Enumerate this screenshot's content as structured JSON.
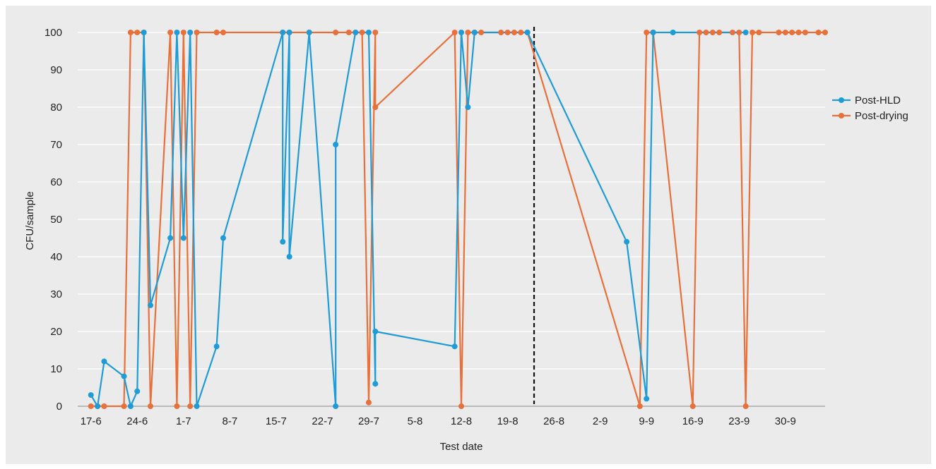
{
  "chart_data": {
    "type": "line",
    "title": "",
    "xlabel": "Test date",
    "ylabel": "CFU/sample",
    "ylim": [
      0,
      100
    ],
    "yticks": [
      0,
      10,
      20,
      30,
      40,
      50,
      60,
      70,
      80,
      90,
      100
    ],
    "xlim": [
      "2019-06-15",
      "2019-10-06"
    ],
    "xticks": [
      {
        "label": "17-6",
        "date": "2019-06-17"
      },
      {
        "label": "24-6",
        "date": "2019-06-24"
      },
      {
        "label": "1-7",
        "date": "2019-07-01"
      },
      {
        "label": "8-7",
        "date": "2019-07-08"
      },
      {
        "label": "15-7",
        "date": "2019-07-15"
      },
      {
        "label": "22-7",
        "date": "2019-07-22"
      },
      {
        "label": "29-7",
        "date": "2019-07-29"
      },
      {
        "label": "5-8",
        "date": "2019-08-05"
      },
      {
        "label": "12-8",
        "date": "2019-08-12"
      },
      {
        "label": "19-8",
        "date": "2019-08-19"
      },
      {
        "label": "26-8",
        "date": "2019-08-26"
      },
      {
        "label": "2-9",
        "date": "2019-09-02"
      },
      {
        "label": "9-9",
        "date": "2019-09-09"
      },
      {
        "label": "16-9",
        "date": "2019-09-16"
      },
      {
        "label": "23-9",
        "date": "2019-09-23"
      },
      {
        "label": "30-9",
        "date": "2019-09-30"
      }
    ],
    "grid": true,
    "legend_position": "right",
    "reference_line": {
      "date": "2019-08-23",
      "style": "dashed",
      "color": "#111111"
    },
    "series": [
      {
        "name": "Post-HLD",
        "color": "#1f9bd6",
        "points": [
          [
            "2019-06-17",
            3
          ],
          [
            "2019-06-18",
            0
          ],
          [
            "2019-06-19",
            12
          ],
          [
            "2019-06-22",
            8
          ],
          [
            "2019-06-23",
            0
          ],
          [
            "2019-06-24",
            4
          ],
          [
            "2019-06-25",
            100
          ],
          [
            "2019-06-26",
            27
          ],
          [
            "2019-06-29",
            45
          ],
          [
            "2019-06-30",
            100
          ],
          [
            "2019-07-01",
            45
          ],
          [
            "2019-07-02",
            100
          ],
          [
            "2019-07-03",
            0
          ],
          [
            "2019-07-06",
            16
          ],
          [
            "2019-07-07",
            45
          ],
          [
            "2019-07-16",
            100
          ],
          [
            "2019-07-16",
            44
          ],
          [
            "2019-07-17",
            100
          ],
          [
            "2019-07-17",
            40
          ],
          [
            "2019-07-20",
            100
          ],
          [
            "2019-07-24",
            0
          ],
          [
            "2019-07-24",
            70
          ],
          [
            "2019-07-27",
            100
          ],
          [
            "2019-07-29",
            100
          ],
          [
            "2019-07-30",
            6
          ],
          [
            "2019-07-30",
            20
          ],
          [
            "2019-08-11",
            16
          ],
          [
            "2019-08-12",
            100
          ],
          [
            "2019-08-13",
            80
          ],
          [
            "2019-08-14",
            100
          ],
          [
            "2019-08-22",
            100
          ],
          [
            "2019-09-06",
            44
          ],
          [
            "2019-09-09",
            2
          ],
          [
            "2019-09-10",
            100
          ],
          [
            "2019-09-13",
            100
          ],
          [
            "2019-09-24",
            100
          ]
        ]
      },
      {
        "name": "Post-drying",
        "color": "#e8703a",
        "points": [
          [
            "2019-06-17",
            0
          ],
          [
            "2019-06-18",
            0
          ],
          [
            "2019-06-19",
            0
          ],
          [
            "2019-06-22",
            0
          ],
          [
            "2019-06-23",
            100
          ],
          [
            "2019-06-24",
            100
          ],
          [
            "2019-06-25",
            100
          ],
          [
            "2019-06-26",
            0
          ],
          [
            "2019-06-29",
            100
          ],
          [
            "2019-06-30",
            0
          ],
          [
            "2019-07-01",
            100
          ],
          [
            "2019-07-02",
            0
          ],
          [
            "2019-07-03",
            100
          ],
          [
            "2019-07-06",
            100
          ],
          [
            "2019-07-07",
            100
          ],
          [
            "2019-07-16",
            100
          ],
          [
            "2019-07-17",
            100
          ],
          [
            "2019-07-20",
            100
          ],
          [
            "2019-07-24",
            100
          ],
          [
            "2019-07-26",
            100
          ],
          [
            "2019-07-27",
            100
          ],
          [
            "2019-07-28",
            100
          ],
          [
            "2019-07-29",
            1
          ],
          [
            "2019-07-30",
            100
          ],
          [
            "2019-07-30",
            80
          ],
          [
            "2019-08-11",
            100
          ],
          [
            "2019-08-12",
            0
          ],
          [
            "2019-08-13",
            100
          ],
          [
            "2019-08-14",
            100
          ],
          [
            "2019-08-15",
            100
          ],
          [
            "2019-08-18",
            100
          ],
          [
            "2019-08-19",
            100
          ],
          [
            "2019-08-20",
            100
          ],
          [
            "2019-08-21",
            100
          ],
          [
            "2019-08-22",
            100
          ],
          [
            "2019-09-08",
            0
          ],
          [
            "2019-09-09",
            100
          ],
          [
            "2019-09-10",
            100
          ],
          [
            "2019-09-16",
            0
          ],
          [
            "2019-09-17",
            100
          ],
          [
            "2019-09-18",
            100
          ],
          [
            "2019-09-19",
            100
          ],
          [
            "2019-09-20",
            100
          ],
          [
            "2019-09-22",
            100
          ],
          [
            "2019-09-23",
            100
          ],
          [
            "2019-09-24",
            0
          ],
          [
            "2019-09-25",
            100
          ],
          [
            "2019-09-26",
            100
          ],
          [
            "2019-09-29",
            100
          ],
          [
            "2019-09-30",
            100
          ],
          [
            "2019-10-01",
            100
          ],
          [
            "2019-10-02",
            100
          ],
          [
            "2019-10-03",
            100
          ],
          [
            "2019-10-05",
            100
          ],
          [
            "2019-10-06",
            100
          ]
        ]
      }
    ]
  }
}
